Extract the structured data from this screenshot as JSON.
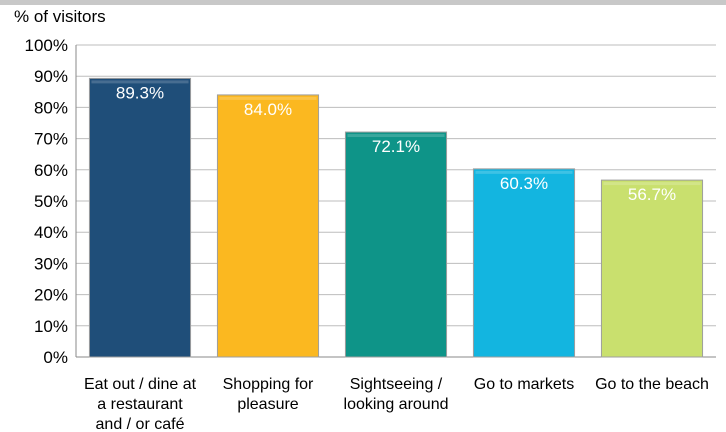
{
  "chart_data": {
    "type": "bar",
    "ylabel": "% of visitors",
    "xlabel": "",
    "title": "",
    "ylim": [
      0,
      100
    ],
    "yticks": [
      "0%",
      "10%",
      "20%",
      "30%",
      "40%",
      "50%",
      "60%",
      "70%",
      "80%",
      "90%",
      "100%"
    ],
    "grid": true,
    "categories": [
      [
        "Eat out / dine at",
        "a restaurant",
        "and / or café"
      ],
      [
        "Shopping for",
        "pleasure"
      ],
      [
        "Sightseeing /",
        "looking around"
      ],
      [
        "Go to markets"
      ],
      [
        "Go to the beach"
      ]
    ],
    "values": [
      89.3,
      84.0,
      72.1,
      60.3,
      56.7
    ],
    "data_labels": [
      "89.3%",
      "84.0%",
      "72.1%",
      "60.3%",
      "56.7%"
    ],
    "colors": [
      "#1f4e79",
      "#fbb820",
      "#0e9488",
      "#13b5e0",
      "#c9e06e"
    ],
    "label_color": "#ffffff"
  }
}
